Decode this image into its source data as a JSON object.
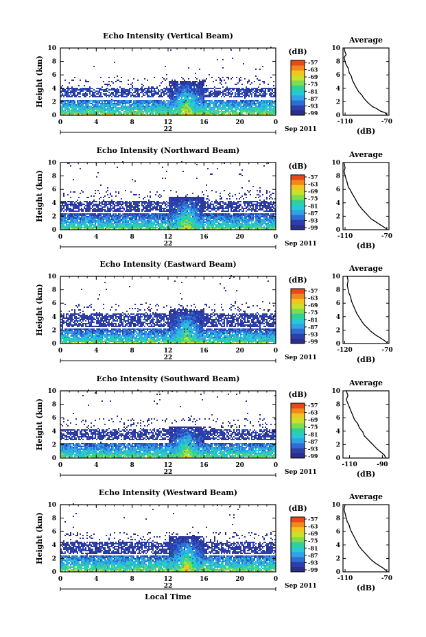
{
  "colors": {
    "colormap": [
      "#2b2e8a",
      "#2d3fa8",
      "#2f6cd4",
      "#2fa3e6",
      "#27c9d6",
      "#2fd19a",
      "#7fdc4a",
      "#c8e12e",
      "#f2c51f",
      "#f08a1a",
      "#e8481a"
    ],
    "line": "#000000",
    "background": "#ffffff"
  },
  "shared": {
    "date_label": "22",
    "month_label": "Sep 2011",
    "x_axis_title": "Local Time",
    "y_axis_title": "Height (km)",
    "cb_unit": "(dB)",
    "avg_title": "Average",
    "avg_xlabel": "(dB)"
  },
  "chart_data": [
    {
      "type": "heatmap",
      "title": "Echo Intensity (Vertical Beam)",
      "xlabel": "",
      "ylabel": "Height (km)",
      "x_ticks": [
        "0",
        "4",
        "8",
        "12",
        "16",
        "20",
        "0"
      ],
      "y_ticks": [
        "0",
        "2",
        "4",
        "6",
        "8",
        "10"
      ],
      "xlim": [
        0,
        24
      ],
      "ylim": [
        0,
        10
      ],
      "colorbar": {
        "unit": "(dB)",
        "ticks": [
          "-57",
          "-63",
          "-69",
          "-75",
          "-81",
          "-87",
          "-93",
          "-99"
        ]
      },
      "layers": [
        {
          "name": "boundary layer",
          "alt_km": [
            0.2,
            2.2
          ],
          "level": 0.55
        },
        {
          "name": "upper layer",
          "alt_km": [
            2.5,
            4.0
          ],
          "level": 0.25
        },
        {
          "name": "convection",
          "time_h": [
            12,
            16
          ],
          "top_km": 5.0,
          "level": 0.75
        }
      ],
      "profile": {
        "title": "Average",
        "xlabel": "(dB)",
        "x_ticks": [
          "-110",
          "-70"
        ],
        "xlim": [
          -112,
          -68
        ],
        "y_ticks": [
          "0",
          "2",
          "4",
          "6",
          "8",
          "10"
        ],
        "points": [
          [
            -70,
            0.1
          ],
          [
            -72,
            0.4
          ],
          [
            -76,
            0.6
          ],
          [
            -80,
            1.0
          ],
          [
            -84,
            1.3
          ],
          [
            -87,
            1.7
          ],
          [
            -89,
            2.0
          ],
          [
            -92,
            2.5
          ],
          [
            -94,
            3.0
          ],
          [
            -97,
            3.5
          ],
          [
            -99,
            4.0
          ],
          [
            -101,
            4.6
          ],
          [
            -103,
            5.2
          ],
          [
            -104,
            5.8
          ],
          [
            -106,
            6.3
          ],
          [
            -107,
            7.0
          ],
          [
            -109,
            7.5
          ],
          [
            -110,
            8.0
          ],
          [
            -111,
            8.6
          ],
          [
            -109,
            9.0
          ],
          [
            -110,
            9.4
          ],
          [
            -111,
            10.0
          ]
        ]
      }
    },
    {
      "type": "heatmap",
      "title": "Echo Intensity (Northward Beam)",
      "xlabel": "",
      "ylabel": "Height (km)",
      "x_ticks": [
        "0",
        "4",
        "8",
        "12",
        "16",
        "20",
        "0"
      ],
      "y_ticks": [
        "0",
        "2",
        "4",
        "6",
        "8",
        "10"
      ],
      "xlim": [
        0,
        24
      ],
      "ylim": [
        0,
        10
      ],
      "colorbar": {
        "unit": "(dB)",
        "ticks": [
          "-57",
          "-63",
          "-69",
          "-75",
          "-81",
          "-87",
          "-93",
          "-99"
        ]
      },
      "layers": [
        {
          "name": "boundary layer",
          "alt_km": [
            0.2,
            2.3
          ],
          "level": 0.5
        },
        {
          "name": "upper layer",
          "alt_km": [
            2.6,
            4.2
          ],
          "level": 0.22
        },
        {
          "name": "convection",
          "time_h": [
            12,
            16
          ],
          "top_km": 4.8,
          "level": 0.7
        }
      ],
      "profile": {
        "title": "Average",
        "xlabel": "(dB)",
        "x_ticks": [
          "-110",
          "-70"
        ],
        "xlim": [
          -112,
          -68
        ],
        "y_ticks": [
          "0",
          "2",
          "4",
          "6",
          "8",
          "10"
        ],
        "points": [
          [
            -70,
            0.1
          ],
          [
            -73,
            0.4
          ],
          [
            -77,
            0.8
          ],
          [
            -81,
            1.2
          ],
          [
            -85,
            1.6
          ],
          [
            -88,
            2.1
          ],
          [
            -91,
            2.6
          ],
          [
            -94,
            3.1
          ],
          [
            -97,
            3.7
          ],
          [
            -99,
            4.2
          ],
          [
            -101,
            4.8
          ],
          [
            -103,
            5.3
          ],
          [
            -105,
            5.9
          ],
          [
            -107,
            6.4
          ],
          [
            -108,
            7.0
          ],
          [
            -109,
            7.5
          ],
          [
            -110,
            8.1
          ],
          [
            -111,
            8.7
          ],
          [
            -110,
            9.2
          ],
          [
            -111,
            10.0
          ]
        ]
      }
    },
    {
      "type": "heatmap",
      "title": "Echo Intensity (Eastward Beam)",
      "xlabel": "",
      "ylabel": "Height (km)",
      "x_ticks": [
        "0",
        "4",
        "8",
        "12",
        "16",
        "20",
        "0"
      ],
      "y_ticks": [
        "0",
        "2",
        "4",
        "6",
        "8",
        "10"
      ],
      "xlim": [
        0,
        24
      ],
      "ylim": [
        0,
        10
      ],
      "colorbar": {
        "unit": "(dB)",
        "ticks": [
          "-57",
          "-63",
          "-69",
          "-75",
          "-81",
          "-87",
          "-93",
          "-99"
        ]
      },
      "layers": [
        {
          "name": "boundary layer",
          "alt_km": [
            0.2,
            2.2
          ],
          "level": 0.5
        },
        {
          "name": "upper layer",
          "alt_km": [
            2.4,
            4.3
          ],
          "level": 0.22
        },
        {
          "name": "convection",
          "time_h": [
            12,
            16
          ],
          "top_km": 5.0,
          "level": 0.65
        }
      ],
      "profile": {
        "title": "Average",
        "xlabel": "(dB)",
        "x_ticks": [
          "-120",
          "-70"
        ],
        "xlim": [
          -122,
          -68
        ],
        "y_ticks": [
          "0",
          "2",
          "4",
          "6",
          "8",
          "10"
        ],
        "points": [
          [
            -70,
            0.1
          ],
          [
            -74,
            0.5
          ],
          [
            -79,
            0.9
          ],
          [
            -84,
            1.3
          ],
          [
            -89,
            1.8
          ],
          [
            -93,
            2.3
          ],
          [
            -97,
            2.8
          ],
          [
            -100,
            3.3
          ],
          [
            -103,
            3.9
          ],
          [
            -106,
            4.5
          ],
          [
            -108,
            5.1
          ],
          [
            -110,
            5.7
          ],
          [
            -112,
            6.3
          ],
          [
            -113,
            6.9
          ],
          [
            -115,
            7.5
          ],
          [
            -116,
            8.1
          ],
          [
            -117,
            8.7
          ],
          [
            -116,
            9.3
          ],
          [
            -117,
            10.0
          ]
        ]
      }
    },
    {
      "type": "heatmap",
      "title": "Echo Intensity (Southward Beam)",
      "xlabel": "",
      "ylabel": "Height (km)",
      "x_ticks": [
        "0",
        "4",
        "8",
        "12",
        "16",
        "20",
        "0"
      ],
      "y_ticks": [
        "0",
        "2",
        "4",
        "6",
        "8",
        "10"
      ],
      "xlim": [
        0,
        24
      ],
      "ylim": [
        0,
        10
      ],
      "colorbar": {
        "unit": "(dB)",
        "ticks": [
          "-57",
          "-63",
          "-69",
          "-75",
          "-81",
          "-87",
          "-93",
          "-99"
        ]
      },
      "layers": [
        {
          "name": "boundary layer",
          "alt_km": [
            0.2,
            2.2
          ],
          "level": 0.52
        },
        {
          "name": "upper layer",
          "alt_km": [
            2.5,
            4.2
          ],
          "level": 0.22
        },
        {
          "name": "convection",
          "time_h": [
            12,
            16
          ],
          "top_km": 4.6,
          "level": 0.7
        }
      ],
      "profile": {
        "title": "Average",
        "xlabel": "(dB)",
        "x_ticks": [
          "-110",
          "-90"
        ],
        "xlim": [
          -114,
          -86
        ],
        "y_ticks": [
          "0",
          "2",
          "4",
          "6",
          "8",
          "10"
        ],
        "points": [
          [
            -88,
            0.1
          ],
          [
            -89,
            0.5
          ],
          [
            -91,
            0.9
          ],
          [
            -93,
            1.3
          ],
          [
            -95,
            1.8
          ],
          [
            -97,
            2.3
          ],
          [
            -99,
            2.8
          ],
          [
            -101,
            3.3
          ],
          [
            -102,
            3.9
          ],
          [
            -104,
            4.5
          ],
          [
            -105,
            5.1
          ],
          [
            -107,
            5.7
          ],
          [
            -108,
            6.3
          ],
          [
            -109,
            6.9
          ],
          [
            -110,
            7.5
          ],
          [
            -111,
            8.1
          ],
          [
            -112,
            8.7
          ],
          [
            -111,
            9.3
          ],
          [
            -112,
            10.0
          ]
        ]
      }
    },
    {
      "type": "heatmap",
      "title": "Echo Intensity (Westward Beam)",
      "xlabel": "Local Time",
      "ylabel": "Height (km)",
      "x_ticks": [
        "0",
        "4",
        "8",
        "12",
        "16",
        "20",
        "0"
      ],
      "y_ticks": [
        "0",
        "2",
        "4",
        "6",
        "8",
        "10"
      ],
      "xlim": [
        0,
        24
      ],
      "ylim": [
        0,
        10
      ],
      "colorbar": {
        "unit": "(dB)",
        "ticks": [
          "-57",
          "-63",
          "-69",
          "-75",
          "-81",
          "-87",
          "-93",
          "-99"
        ]
      },
      "layers": [
        {
          "name": "boundary layer",
          "alt_km": [
            0.2,
            2.3
          ],
          "level": 0.55
        },
        {
          "name": "upper layer",
          "alt_km": [
            2.5,
            4.3
          ],
          "level": 0.22
        },
        {
          "name": "convection",
          "time_h": [
            12,
            16
          ],
          "top_km": 5.2,
          "level": 0.75
        }
      ],
      "profile": {
        "title": "Average",
        "xlabel": "(dB)",
        "x_ticks": [
          "-110",
          "-70"
        ],
        "xlim": [
          -112,
          -68
        ],
        "y_ticks": [
          "0",
          "2",
          "4",
          "6",
          "8",
          "10"
        ],
        "points": [
          [
            -70,
            0.1
          ],
          [
            -73,
            0.5
          ],
          [
            -77,
            0.9
          ],
          [
            -81,
            1.3
          ],
          [
            -85,
            1.8
          ],
          [
            -88,
            2.3
          ],
          [
            -91,
            2.8
          ],
          [
            -94,
            3.3
          ],
          [
            -97,
            3.9
          ],
          [
            -99,
            4.5
          ],
          [
            -101,
            5.1
          ],
          [
            -103,
            5.7
          ],
          [
            -105,
            6.3
          ],
          [
            -106,
            6.9
          ],
          [
            -108,
            7.5
          ],
          [
            -109,
            8.1
          ],
          [
            -110,
            8.7
          ],
          [
            -111,
            9.3
          ],
          [
            -110,
            10.0
          ]
        ]
      }
    }
  ]
}
